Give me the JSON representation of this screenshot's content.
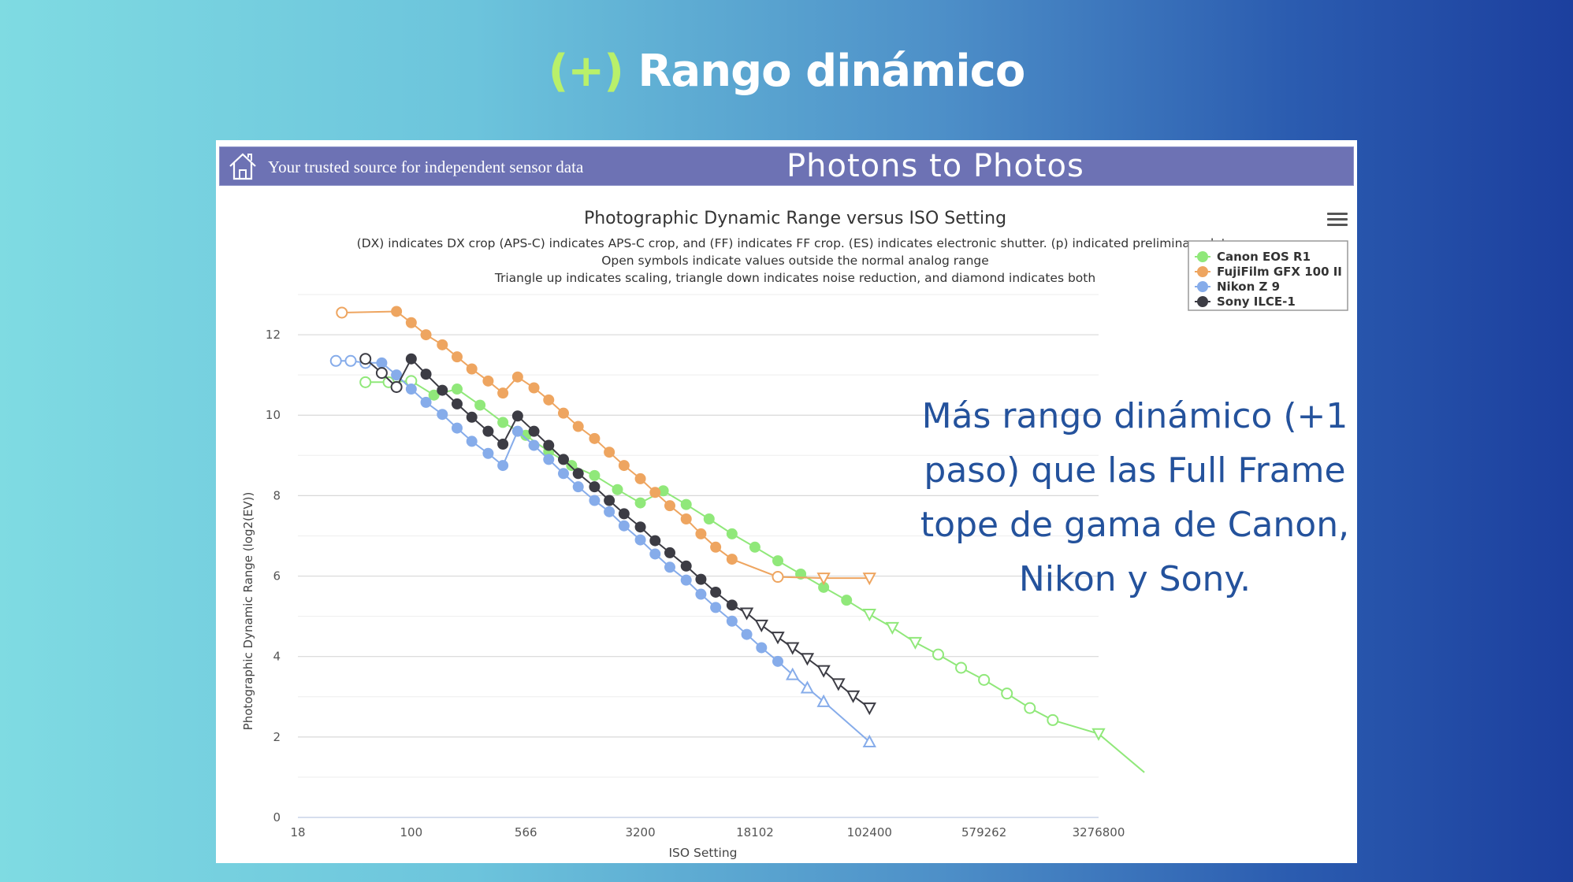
{
  "slide": {
    "title_accent": "(+)",
    "title_main": "Rango dinámico",
    "callout": "Más rango dinámico (+1 paso) que las Full Frame tope de gama de Canon, Nikon y Sony."
  },
  "banner": {
    "tagline": "Your trusted source for independent sensor data",
    "brand": "Photons to Photos",
    "home_icon": "home-icon"
  },
  "menu_icon": "hamburger-menu-icon",
  "colors": {
    "canon": "#90e87a",
    "fuji": "#eea560",
    "nikon": "#86acea",
    "sony": "#3c3c44",
    "banner": "#6d72b4",
    "callout": "#24529c",
    "accent": "#b9f06a"
  },
  "chart_data": {
    "type": "line",
    "title": "Photographic Dynamic Range versus ISO Setting",
    "subtitles": [
      "(DX) indicates DX crop (APS-C) indicates APS-C crop, and (FF) indicates FF crop. (ES) indicates electronic shutter. (p) indicated preliminary data",
      "Open symbols indicate values outside the normal analog range",
      "Triangle up indicates scaling, triangle down indicates noise reduction, and diamond indicates both"
    ],
    "xlabel": "ISO Setting",
    "ylabel": "Photographic Dynamic Range (log2(EV))",
    "x_scale": "log",
    "xlim": [
      18,
      3276800
    ],
    "ylim": [
      0,
      13
    ],
    "x_ticks": [
      18,
      100,
      566,
      3200,
      18102,
      102400,
      579262,
      3276800
    ],
    "y_ticks": [
      0,
      2,
      4,
      6,
      8,
      10,
      12
    ],
    "grid": true,
    "legend_position": "top-right",
    "series": [
      {
        "name": "Canon EOS R1",
        "color_key": "canon",
        "points": [
          {
            "x": 50,
            "y": 10.82,
            "m": "open"
          },
          {
            "x": 71,
            "y": 10.82,
            "m": "open"
          },
          {
            "x": 100,
            "y": 10.85,
            "m": "open"
          },
          {
            "x": 141,
            "y": 10.5,
            "m": "dot"
          },
          {
            "x": 200,
            "y": 10.65,
            "m": "dot"
          },
          {
            "x": 283,
            "y": 10.25,
            "m": "dot"
          },
          {
            "x": 400,
            "y": 9.82,
            "m": "dot"
          },
          {
            "x": 566,
            "y": 9.5,
            "m": "dot"
          },
          {
            "x": 800,
            "y": 9.1,
            "m": "dot"
          },
          {
            "x": 1131,
            "y": 8.75,
            "m": "dot"
          },
          {
            "x": 1600,
            "y": 8.5,
            "m": "dot"
          },
          {
            "x": 2263,
            "y": 8.15,
            "m": "dot"
          },
          {
            "x": 3200,
            "y": 7.82,
            "m": "dot"
          },
          {
            "x": 4525,
            "y": 8.12,
            "m": "dot"
          },
          {
            "x": 6400,
            "y": 7.78,
            "m": "dot"
          },
          {
            "x": 9051,
            "y": 7.42,
            "m": "dot"
          },
          {
            "x": 12800,
            "y": 7.05,
            "m": "dot"
          },
          {
            "x": 18102,
            "y": 6.72,
            "m": "dot"
          },
          {
            "x": 25600,
            "y": 6.38,
            "m": "dot"
          },
          {
            "x": 36204,
            "y": 6.05,
            "m": "dot"
          },
          {
            "x": 51200,
            "y": 5.72,
            "m": "dot"
          },
          {
            "x": 72408,
            "y": 5.4,
            "m": "dot"
          },
          {
            "x": 102400,
            "y": 5.05,
            "m": "tri-down"
          },
          {
            "x": 144815,
            "y": 4.72,
            "m": "tri-down"
          },
          {
            "x": 204800,
            "y": 4.35,
            "m": "tri-down"
          },
          {
            "x": 289631,
            "y": 4.05,
            "m": "open"
          },
          {
            "x": 409600,
            "y": 3.72,
            "m": "open"
          },
          {
            "x": 579262,
            "y": 3.42,
            "m": "open"
          },
          {
            "x": 819200,
            "y": 3.08,
            "m": "open"
          },
          {
            "x": 1158524,
            "y": 2.72,
            "m": "open"
          },
          {
            "x": 1638400,
            "y": 2.42,
            "m": "open"
          },
          {
            "x": 3276800,
            "y": 2.08,
            "m": "tri-down"
          },
          {
            "x": 6553600,
            "y": 1.12,
            "m": "tri-down"
          }
        ]
      },
      {
        "name": "FujiFilm GFX 100 II",
        "color_key": "fuji",
        "points": [
          {
            "x": 35,
            "y": 12.55,
            "m": "open"
          },
          {
            "x": 80,
            "y": 12.58,
            "m": "dot"
          },
          {
            "x": 100,
            "y": 12.3,
            "m": "dot"
          },
          {
            "x": 125,
            "y": 12.0,
            "m": "dot"
          },
          {
            "x": 160,
            "y": 11.75,
            "m": "dot"
          },
          {
            "x": 200,
            "y": 11.45,
            "m": "dot"
          },
          {
            "x": 250,
            "y": 11.15,
            "m": "dot"
          },
          {
            "x": 320,
            "y": 10.85,
            "m": "dot"
          },
          {
            "x": 400,
            "y": 10.55,
            "m": "dot"
          },
          {
            "x": 500,
            "y": 10.95,
            "m": "dot"
          },
          {
            "x": 640,
            "y": 10.68,
            "m": "dot"
          },
          {
            "x": 800,
            "y": 10.38,
            "m": "dot"
          },
          {
            "x": 1000,
            "y": 10.05,
            "m": "dot"
          },
          {
            "x": 1250,
            "y": 9.72,
            "m": "dot"
          },
          {
            "x": 1600,
            "y": 9.42,
            "m": "dot"
          },
          {
            "x": 2000,
            "y": 9.08,
            "m": "dot"
          },
          {
            "x": 2500,
            "y": 8.75,
            "m": "dot"
          },
          {
            "x": 3200,
            "y": 8.42,
            "m": "dot"
          },
          {
            "x": 4000,
            "y": 8.08,
            "m": "dot"
          },
          {
            "x": 5000,
            "y": 7.75,
            "m": "dot"
          },
          {
            "x": 6400,
            "y": 7.42,
            "m": "dot"
          },
          {
            "x": 8000,
            "y": 7.05,
            "m": "dot"
          },
          {
            "x": 10000,
            "y": 6.72,
            "m": "dot"
          },
          {
            "x": 12800,
            "y": 6.42,
            "m": "dot"
          },
          {
            "x": 25600,
            "y": 5.98,
            "m": "open"
          },
          {
            "x": 51200,
            "y": 5.95,
            "m": "tri-down"
          },
          {
            "x": 102400,
            "y": 5.95,
            "m": "tri-down"
          }
        ]
      },
      {
        "name": "Nikon Z 9",
        "color_key": "nikon",
        "points": [
          {
            "x": 32,
            "y": 11.35,
            "m": "open"
          },
          {
            "x": 40,
            "y": 11.35,
            "m": "open"
          },
          {
            "x": 50,
            "y": 11.3,
            "m": "open"
          },
          {
            "x": 64,
            "y": 11.3,
            "m": "dot"
          },
          {
            "x": 80,
            "y": 11.0,
            "m": "dot"
          },
          {
            "x": 100,
            "y": 10.65,
            "m": "dot"
          },
          {
            "x": 125,
            "y": 10.32,
            "m": "dot"
          },
          {
            "x": 160,
            "y": 10.02,
            "m": "dot"
          },
          {
            "x": 200,
            "y": 9.68,
            "m": "dot"
          },
          {
            "x": 250,
            "y": 9.35,
            "m": "dot"
          },
          {
            "x": 320,
            "y": 9.05,
            "m": "dot"
          },
          {
            "x": 400,
            "y": 8.75,
            "m": "dot"
          },
          {
            "x": 500,
            "y": 9.6,
            "m": "dot"
          },
          {
            "x": 640,
            "y": 9.25,
            "m": "dot"
          },
          {
            "x": 800,
            "y": 8.9,
            "m": "dot"
          },
          {
            "x": 1000,
            "y": 8.55,
            "m": "dot"
          },
          {
            "x": 1250,
            "y": 8.22,
            "m": "dot"
          },
          {
            "x": 1600,
            "y": 7.88,
            "m": "dot"
          },
          {
            "x": 2000,
            "y": 7.6,
            "m": "dot"
          },
          {
            "x": 2500,
            "y": 7.25,
            "m": "dot"
          },
          {
            "x": 3200,
            "y": 6.9,
            "m": "dot"
          },
          {
            "x": 4000,
            "y": 6.55,
            "m": "dot"
          },
          {
            "x": 5000,
            "y": 6.22,
            "m": "dot"
          },
          {
            "x": 6400,
            "y": 5.9,
            "m": "dot"
          },
          {
            "x": 8000,
            "y": 5.55,
            "m": "dot"
          },
          {
            "x": 10000,
            "y": 5.22,
            "m": "dot"
          },
          {
            "x": 12800,
            "y": 4.88,
            "m": "dot"
          },
          {
            "x": 16000,
            "y": 4.55,
            "m": "dot"
          },
          {
            "x": 20000,
            "y": 4.22,
            "m": "dot"
          },
          {
            "x": 25600,
            "y": 3.88,
            "m": "dot"
          },
          {
            "x": 32000,
            "y": 3.55,
            "m": "tri-up"
          },
          {
            "x": 40000,
            "y": 3.22,
            "m": "tri-up"
          },
          {
            "x": 51200,
            "y": 2.88,
            "m": "tri-up"
          },
          {
            "x": 102400,
            "y": 1.88,
            "m": "tri-up"
          }
        ]
      },
      {
        "name": "Sony ILCE-1",
        "color_key": "sony",
        "points": [
          {
            "x": 50,
            "y": 11.4,
            "m": "open"
          },
          {
            "x": 64,
            "y": 11.05,
            "m": "open"
          },
          {
            "x": 80,
            "y": 10.7,
            "m": "open"
          },
          {
            "x": 100,
            "y": 11.4,
            "m": "dot"
          },
          {
            "x": 125,
            "y": 11.02,
            "m": "dot"
          },
          {
            "x": 160,
            "y": 10.62,
            "m": "dot"
          },
          {
            "x": 200,
            "y": 10.28,
            "m": "dot"
          },
          {
            "x": 250,
            "y": 9.95,
            "m": "dot"
          },
          {
            "x": 320,
            "y": 9.6,
            "m": "dot"
          },
          {
            "x": 400,
            "y": 9.28,
            "m": "dot"
          },
          {
            "x": 500,
            "y": 9.98,
            "m": "dot"
          },
          {
            "x": 640,
            "y": 9.6,
            "m": "dot"
          },
          {
            "x": 800,
            "y": 9.25,
            "m": "dot"
          },
          {
            "x": 1000,
            "y": 8.9,
            "m": "dot"
          },
          {
            "x": 1250,
            "y": 8.55,
            "m": "dot"
          },
          {
            "x": 1600,
            "y": 8.22,
            "m": "dot"
          },
          {
            "x": 2000,
            "y": 7.88,
            "m": "dot"
          },
          {
            "x": 2500,
            "y": 7.55,
            "m": "dot"
          },
          {
            "x": 3200,
            "y": 7.22,
            "m": "dot"
          },
          {
            "x": 4000,
            "y": 6.88,
            "m": "dot"
          },
          {
            "x": 5000,
            "y": 6.58,
            "m": "dot"
          },
          {
            "x": 6400,
            "y": 6.25,
            "m": "dot"
          },
          {
            "x": 8000,
            "y": 5.92,
            "m": "dot"
          },
          {
            "x": 10000,
            "y": 5.6,
            "m": "dot"
          },
          {
            "x": 12800,
            "y": 5.28,
            "m": "dot"
          },
          {
            "x": 16000,
            "y": 5.08,
            "m": "tri-down"
          },
          {
            "x": 20000,
            "y": 4.78,
            "m": "tri-down"
          },
          {
            "x": 25600,
            "y": 4.48,
            "m": "tri-down"
          },
          {
            "x": 32000,
            "y": 4.22,
            "m": "tri-down"
          },
          {
            "x": 40000,
            "y": 3.95,
            "m": "tri-down"
          },
          {
            "x": 51200,
            "y": 3.65,
            "m": "tri-down"
          },
          {
            "x": 64000,
            "y": 3.32,
            "m": "tri-down"
          },
          {
            "x": 80000,
            "y": 3.02,
            "m": "tri-down"
          },
          {
            "x": 102400,
            "y": 2.72,
            "m": "tri-down"
          }
        ]
      }
    ]
  }
}
